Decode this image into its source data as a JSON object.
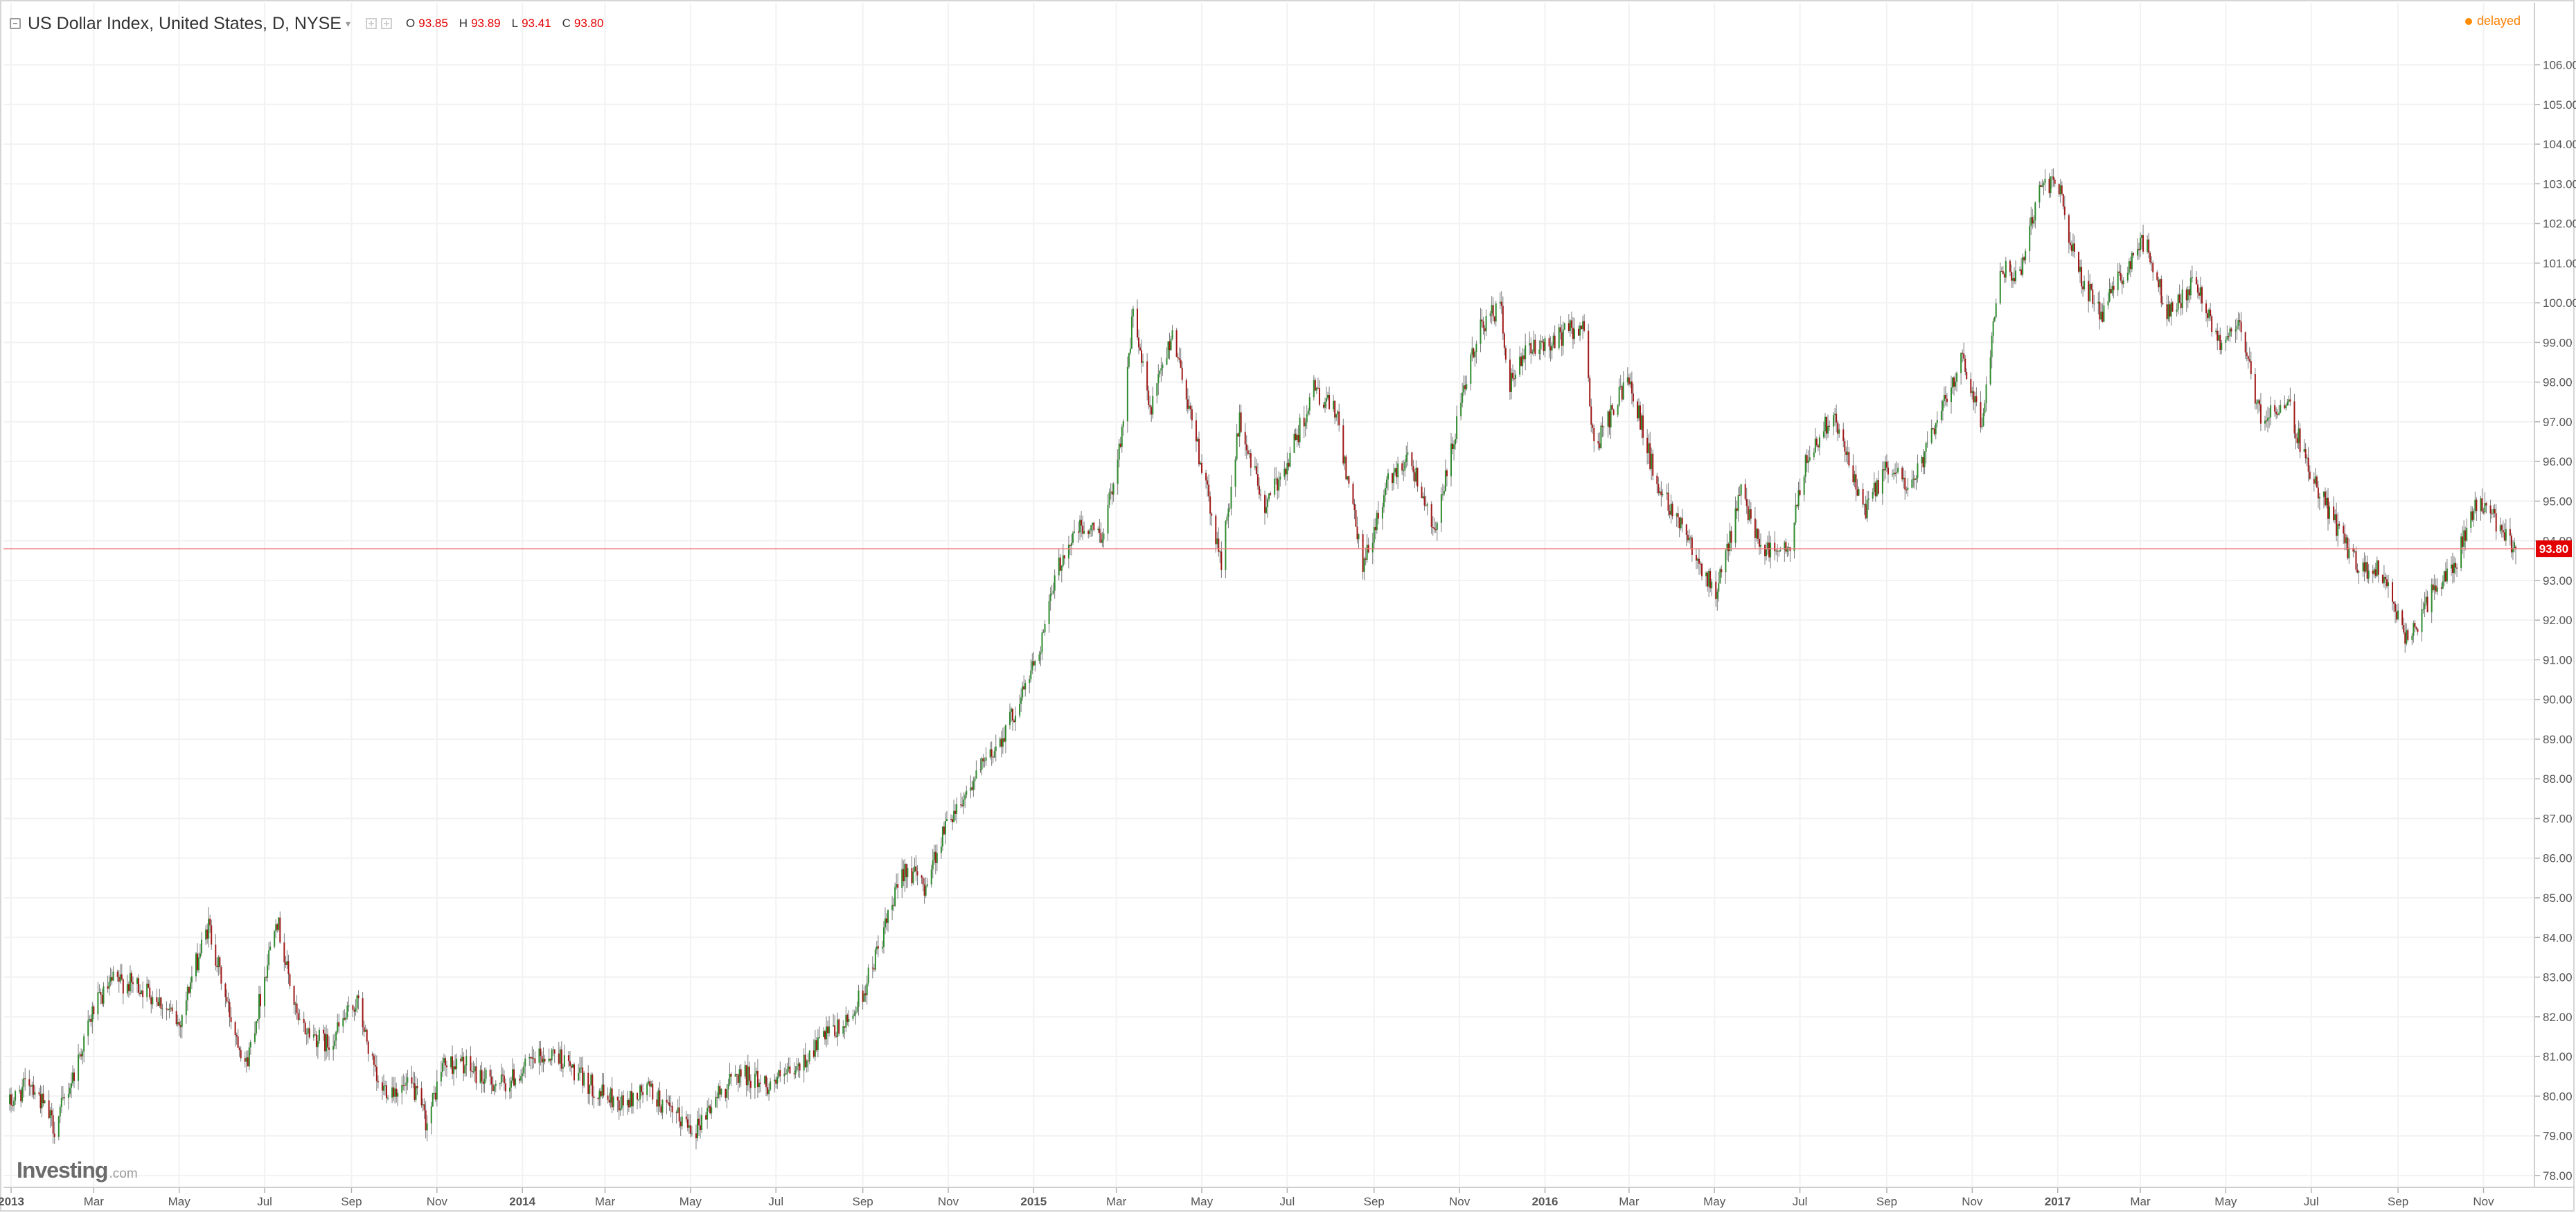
{
  "header": {
    "symbol": "US Dollar Index, United States, D, NYSE",
    "ohlc": [
      {
        "label": "O",
        "value": "93.85"
      },
      {
        "label": "H",
        "value": "93.89"
      },
      {
        "label": "L",
        "value": "93.41"
      },
      {
        "label": "C",
        "value": "93.80"
      }
    ],
    "status": "delayed"
  },
  "logo": {
    "main": "Investing",
    "suffix": ".com"
  },
  "colors": {
    "up": "#2e8b2e",
    "down": "#a01818",
    "wick": "#7a7a7a",
    "last_price_line": "#f07a7a",
    "last_price_tag": "#e30000",
    "grid": "#f2f2f2"
  },
  "icons": [
    "collapse-icon",
    "settings-icon",
    "close-icon",
    "status-dot-icon"
  ],
  "chart_data": {
    "type": "candlestick",
    "title": "",
    "xlabel": "",
    "ylabel": "",
    "ylim": [
      77.7,
      106.9
    ],
    "y_ticks": [
      "106.00",
      "105.00",
      "104.00",
      "103.00",
      "102.00",
      "101.00",
      "100.00",
      "99.00",
      "98.00",
      "97.00",
      "96.00",
      "95.00",
      "94.00",
      "93.00",
      "92.00",
      "91.00",
      "90.00",
      "89.00",
      "88.00",
      "87.00",
      "86.00",
      "85.00",
      "84.00",
      "83.00",
      "82.00",
      "81.00",
      "80.00",
      "79.00",
      "78.00"
    ],
    "x_range": [
      "2012-12-31",
      "2017-11-24"
    ],
    "x_ticks": [
      {
        "label": "2013",
        "date": "2013-01-01",
        "bold": true
      },
      {
        "label": "Mar",
        "date": "2013-03-01"
      },
      {
        "label": "May",
        "date": "2013-05-01"
      },
      {
        "label": "Jul",
        "date": "2013-07-01"
      },
      {
        "label": "Sep",
        "date": "2013-09-01"
      },
      {
        "label": "Nov",
        "date": "2013-11-01"
      },
      {
        "label": "2014",
        "date": "2014-01-01",
        "bold": true
      },
      {
        "label": "Mar",
        "date": "2014-03-01"
      },
      {
        "label": "May",
        "date": "2014-05-01"
      },
      {
        "label": "Jul",
        "date": "2014-07-01"
      },
      {
        "label": "Sep",
        "date": "2014-09-01"
      },
      {
        "label": "Nov",
        "date": "2014-11-01"
      },
      {
        "label": "2015",
        "date": "2015-01-01",
        "bold": true
      },
      {
        "label": "Mar",
        "date": "2015-03-01"
      },
      {
        "label": "May",
        "date": "2015-05-01"
      },
      {
        "label": "Jul",
        "date": "2015-07-01"
      },
      {
        "label": "Sep",
        "date": "2015-09-01"
      },
      {
        "label": "Nov",
        "date": "2015-11-01"
      },
      {
        "label": "2016",
        "date": "2016-01-01",
        "bold": true
      },
      {
        "label": "Mar",
        "date": "2016-03-01"
      },
      {
        "label": "May",
        "date": "2016-05-01"
      },
      {
        "label": "Jul",
        "date": "2016-07-01"
      },
      {
        "label": "Sep",
        "date": "2016-09-01"
      },
      {
        "label": "Nov",
        "date": "2016-11-01"
      },
      {
        "label": "2017",
        "date": "2017-01-01",
        "bold": true
      },
      {
        "label": "Mar",
        "date": "2017-03-01"
      },
      {
        "label": "May",
        "date": "2017-05-01"
      },
      {
        "label": "Jul",
        "date": "2017-07-01"
      },
      {
        "label": "Sep",
        "date": "2017-09-01"
      },
      {
        "label": "Nov",
        "date": "2017-11-01"
      }
    ],
    "last_price": {
      "value": 93.8,
      "label": "93.80"
    },
    "grid": true,
    "series": [
      {
        "approx_closes": [
          [
            "2012-12-31",
            79.8
          ],
          [
            "2013-01-15",
            80.4
          ],
          [
            "2013-02-01",
            79.2
          ],
          [
            "2013-02-15",
            80.6
          ],
          [
            "2013-03-01",
            82.2
          ],
          [
            "2013-03-15",
            82.9
          ],
          [
            "2013-04-01",
            82.8
          ],
          [
            "2013-04-15",
            82.5
          ],
          [
            "2013-05-01",
            81.8
          ],
          [
            "2013-05-10",
            83.0
          ],
          [
            "2013-05-22",
            84.3
          ],
          [
            "2013-06-05",
            82.2
          ],
          [
            "2013-06-18",
            80.8
          ],
          [
            "2013-07-02",
            83.2
          ],
          [
            "2013-07-09",
            84.6
          ],
          [
            "2013-07-25",
            81.8
          ],
          [
            "2013-08-15",
            81.3
          ],
          [
            "2013-09-05",
            82.4
          ],
          [
            "2013-09-20",
            80.2
          ],
          [
            "2013-10-15",
            80.2
          ],
          [
            "2013-10-25",
            79.3
          ],
          [
            "2013-11-05",
            80.8
          ],
          [
            "2013-11-20",
            80.8
          ],
          [
            "2013-12-05",
            80.4
          ],
          [
            "2013-12-20",
            80.3
          ],
          [
            "2014-01-10",
            80.9
          ],
          [
            "2014-01-25",
            81.1
          ],
          [
            "2014-02-10",
            80.5
          ],
          [
            "2014-03-01",
            80.0
          ],
          [
            "2014-03-15",
            79.8
          ],
          [
            "2014-04-01",
            80.2
          ],
          [
            "2014-04-15",
            79.6
          ],
          [
            "2014-05-05",
            79.2
          ],
          [
            "2014-05-20",
            80.0
          ],
          [
            "2014-06-05",
            80.6
          ],
          [
            "2014-06-25",
            80.3
          ],
          [
            "2014-07-15",
            80.6
          ],
          [
            "2014-08-01",
            81.4
          ],
          [
            "2014-08-20",
            81.8
          ],
          [
            "2014-09-01",
            82.6
          ],
          [
            "2014-09-15",
            84.0
          ],
          [
            "2014-10-01",
            85.8
          ],
          [
            "2014-10-15",
            85.3
          ],
          [
            "2014-11-01",
            87.0
          ],
          [
            "2014-11-20",
            88.0
          ],
          [
            "2014-12-05",
            88.8
          ],
          [
            "2014-12-20",
            89.8
          ],
          [
            "2015-01-05",
            91.3
          ],
          [
            "2015-01-20",
            93.5
          ],
          [
            "2015-02-01",
            94.3
          ],
          [
            "2015-02-20",
            94.2
          ],
          [
            "2015-03-05",
            96.8
          ],
          [
            "2015-03-13",
            99.8
          ],
          [
            "2015-03-25",
            97.2
          ],
          [
            "2015-04-10",
            99.3
          ],
          [
            "2015-04-25",
            96.9
          ],
          [
            "2015-05-15",
            93.4
          ],
          [
            "2015-05-28",
            97.0
          ],
          [
            "2015-06-15",
            94.8
          ],
          [
            "2015-07-01",
            96.0
          ],
          [
            "2015-07-20",
            97.8
          ],
          [
            "2015-08-05",
            97.2
          ],
          [
            "2015-08-24",
            93.3
          ],
          [
            "2015-09-10",
            95.4
          ],
          [
            "2015-09-25",
            96.2
          ],
          [
            "2015-10-15",
            94.3
          ],
          [
            "2015-10-30",
            96.9
          ],
          [
            "2015-11-15",
            99.4
          ],
          [
            "2015-12-01",
            99.9
          ],
          [
            "2015-12-05",
            97.8
          ],
          [
            "2015-12-20",
            98.8
          ],
          [
            "2016-01-05",
            99.0
          ],
          [
            "2016-01-28",
            99.5
          ],
          [
            "2016-02-05",
            96.3
          ],
          [
            "2016-02-20",
            97.4
          ],
          [
            "2016-03-01",
            98.2
          ],
          [
            "2016-03-20",
            95.5
          ],
          [
            "2016-04-10",
            94.3
          ],
          [
            "2016-05-02",
            92.6
          ],
          [
            "2016-05-20",
            95.2
          ],
          [
            "2016-06-05",
            93.8
          ],
          [
            "2016-06-23",
            93.7
          ],
          [
            "2016-07-05",
            96.0
          ],
          [
            "2016-07-25",
            97.3
          ],
          [
            "2016-08-15",
            94.7
          ],
          [
            "2016-09-01",
            95.8
          ],
          [
            "2016-09-20",
            95.4
          ],
          [
            "2016-10-10",
            97.3
          ],
          [
            "2016-10-25",
            98.7
          ],
          [
            "2016-11-08",
            96.9
          ],
          [
            "2016-11-20",
            100.9
          ],
          [
            "2016-12-05",
            100.7
          ],
          [
            "2016-12-20",
            103.1
          ],
          [
            "2017-01-02",
            102.9
          ],
          [
            "2017-01-15",
            100.8
          ],
          [
            "2017-02-01",
            99.7
          ],
          [
            "2017-02-20",
            101.0
          ],
          [
            "2017-03-05",
            101.6
          ],
          [
            "2017-03-20",
            99.7
          ],
          [
            "2017-04-10",
            100.6
          ],
          [
            "2017-04-25",
            99.0
          ],
          [
            "2017-05-10",
            99.5
          ],
          [
            "2017-05-25",
            97.2
          ],
          [
            "2017-06-15",
            97.4
          ],
          [
            "2017-07-01",
            95.6
          ],
          [
            "2017-07-20",
            94.3
          ],
          [
            "2017-08-05",
            93.2
          ],
          [
            "2017-08-20",
            93.3
          ],
          [
            "2017-09-08",
            91.4
          ],
          [
            "2017-09-25",
            92.7
          ],
          [
            "2017-10-10",
            93.3
          ],
          [
            "2017-10-27",
            94.9
          ],
          [
            "2017-11-10",
            94.5
          ],
          [
            "2017-11-24",
            93.8
          ]
        ]
      }
    ]
  }
}
